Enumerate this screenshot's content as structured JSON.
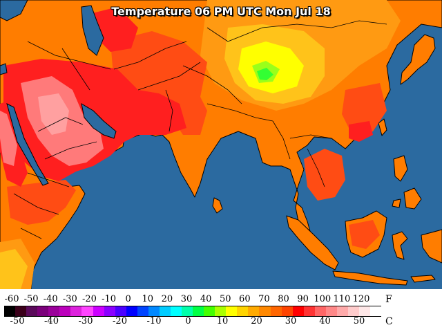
{
  "title": "Temperature 06 PM UTC Mon Jul 18",
  "colors": {
    "ocean": "#2b6aa0",
    "coast": "#000000",
    "very_hot": "#ff7a7a",
    "hot_red": "#ff1f1f",
    "orange_red": "#ff4c14",
    "orange": "#ff7d00",
    "light_orange": "#ff9a12",
    "yellow_orange": "#ffc31a",
    "yellow": "#ffff00",
    "lime": "#9aff1a",
    "green": "#33ff33"
  },
  "legend": {
    "fahrenheit_unit": "F",
    "celsius_unit": "C",
    "fahrenheit_labels": [
      "-60",
      "-50",
      "-40",
      "-30",
      "-20",
      "-10",
      "0",
      "10",
      "20",
      "30",
      "40",
      "50",
      "60",
      "70",
      "80",
      "90",
      "100",
      "110",
      "120"
    ],
    "celsius_labels": [
      "-50",
      "-40",
      "-30",
      "-20",
      "-10",
      "0",
      "10",
      "20",
      "30",
      "40",
      "50"
    ],
    "colors": [
      "#000000",
      "#3a001a",
      "#5a0a5a",
      "#7a007a",
      "#9a009a",
      "#bb00bb",
      "#dd22dd",
      "#ff44ff",
      "#cc00ff",
      "#8a00ff",
      "#4a00ff",
      "#0000ff",
      "#0044ff",
      "#0088ff",
      "#00ccff",
      "#00ffff",
      "#00ffaa",
      "#00ff44",
      "#44ff00",
      "#aaff00",
      "#ffff00",
      "#ffd400",
      "#ffaa00",
      "#ff8800",
      "#ff6600",
      "#ff4400",
      "#ff0000",
      "#ff3333",
      "#ff6666",
      "#ff8888",
      "#ffaaaa",
      "#ffcccc",
      "#ffe8e8",
      "#ffffff"
    ]
  }
}
